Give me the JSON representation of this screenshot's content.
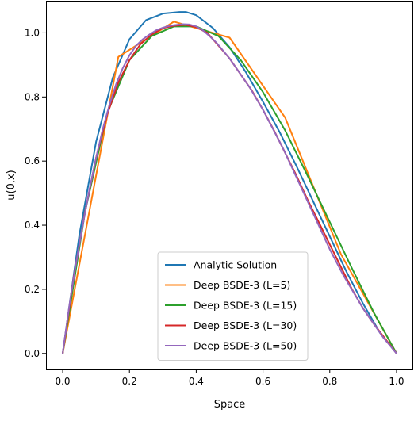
{
  "chart_data": {
    "type": "line",
    "title": "",
    "xlabel": "Space",
    "ylabel": "u(0,x)",
    "xlim": [
      -0.05,
      1.05
    ],
    "ylim": [
      -0.05,
      1.1
    ],
    "xticks": [
      0.0,
      0.2,
      0.4,
      0.6,
      0.8,
      1.0
    ],
    "xtick_labels": [
      "0.0",
      "0.2",
      "0.4",
      "0.6",
      "0.8",
      "1.0"
    ],
    "yticks": [
      0.0,
      0.2,
      0.4,
      0.6,
      0.8,
      1.0
    ],
    "ytick_labels": [
      "0.0",
      "0.2",
      "0.4",
      "0.6",
      "0.8",
      "1.0"
    ],
    "grid": false,
    "legend_position": "lower-center",
    "series": [
      {
        "name": "Analytic Solution",
        "color": "#1f77b4",
        "x": [
          0.0,
          0.05,
          0.1,
          0.15,
          0.2,
          0.25,
          0.3,
          0.35,
          0.37,
          0.4,
          0.45,
          0.5,
          0.55,
          0.6,
          0.65,
          0.7,
          0.75,
          0.8,
          0.85,
          0.9,
          0.95,
          1.0
        ],
        "y": [
          0.0,
          0.37,
          0.66,
          0.86,
          0.98,
          1.04,
          1.06,
          1.065,
          1.065,
          1.055,
          1.015,
          0.955,
          0.875,
          0.785,
          0.69,
          0.585,
          0.475,
          0.365,
          0.255,
          0.155,
          0.065,
          0.0
        ]
      },
      {
        "name": "Deep BSDE-3 (L=5)",
        "color": "#ff7f0e",
        "x": [
          0.0,
          0.1667,
          0.3333,
          0.5,
          0.6667,
          0.8333,
          1.0
        ],
        "y": [
          0.0,
          0.925,
          1.035,
          0.985,
          0.735,
          0.31,
          0.0
        ]
      },
      {
        "name": "Deep BSDE-3 (L=15)",
        "color": "#2ca02c",
        "x": [
          0.0,
          0.0667,
          0.1333,
          0.2,
          0.2667,
          0.3333,
          0.4,
          0.4667,
          0.5333,
          0.6,
          0.6667,
          0.7333,
          0.8,
          0.8667,
          0.9333,
          1.0
        ],
        "y": [
          0.0,
          0.44,
          0.75,
          0.915,
          0.99,
          1.02,
          1.02,
          0.99,
          0.915,
          0.815,
          0.695,
          0.555,
          0.41,
          0.265,
          0.125,
          0.0
        ]
      },
      {
        "name": "Deep BSDE-3 (L=30)",
        "color": "#d62728",
        "x": [
          0.0,
          0.0333,
          0.0667,
          0.1,
          0.1333,
          0.1667,
          0.2,
          0.2333,
          0.2667,
          0.3,
          0.3333,
          0.3667,
          0.4,
          0.4333,
          0.4667,
          0.5,
          0.5333,
          0.5667,
          0.6,
          0.6333,
          0.6667,
          0.7,
          0.7333,
          0.7667,
          0.8,
          0.8333,
          0.8667,
          0.9,
          0.9333,
          0.9667,
          1.0
        ],
        "y": [
          0.0,
          0.24,
          0.44,
          0.61,
          0.745,
          0.845,
          0.915,
          0.965,
          0.995,
          1.015,
          1.022,
          1.025,
          1.018,
          1.0,
          0.96,
          0.92,
          0.87,
          0.82,
          0.76,
          0.695,
          0.625,
          0.555,
          0.48,
          0.41,
          0.34,
          0.27,
          0.2,
          0.14,
          0.09,
          0.045,
          0.0
        ]
      },
      {
        "name": "Deep BSDE-3 (L=50)",
        "color": "#9467bd",
        "x": [
          0.0,
          0.02,
          0.04,
          0.06,
          0.08,
          0.1,
          0.12,
          0.14,
          0.16,
          0.18,
          0.2,
          0.22,
          0.24,
          0.26,
          0.28,
          0.3,
          0.32,
          0.34,
          0.36,
          0.38,
          0.4,
          0.42,
          0.44,
          0.46,
          0.48,
          0.5,
          0.52,
          0.54,
          0.56,
          0.58,
          0.6,
          0.62,
          0.64,
          0.66,
          0.68,
          0.7,
          0.72,
          0.74,
          0.76,
          0.78,
          0.8,
          0.82,
          0.84,
          0.86,
          0.88,
          0.9,
          0.92,
          0.94,
          0.96,
          0.98,
          1.0
        ],
        "y": [
          0.0,
          0.15,
          0.28,
          0.4,
          0.51,
          0.61,
          0.7,
          0.775,
          0.84,
          0.89,
          0.93,
          0.96,
          0.98,
          0.995,
          1.008,
          1.016,
          1.022,
          1.025,
          1.027,
          1.026,
          1.02,
          1.008,
          0.99,
          0.97,
          0.945,
          0.92,
          0.89,
          0.86,
          0.83,
          0.795,
          0.76,
          0.72,
          0.68,
          0.64,
          0.595,
          0.55,
          0.505,
          0.46,
          0.415,
          0.37,
          0.325,
          0.285,
          0.245,
          0.21,
          0.175,
          0.14,
          0.11,
          0.08,
          0.05,
          0.025,
          0.0
        ]
      }
    ]
  }
}
